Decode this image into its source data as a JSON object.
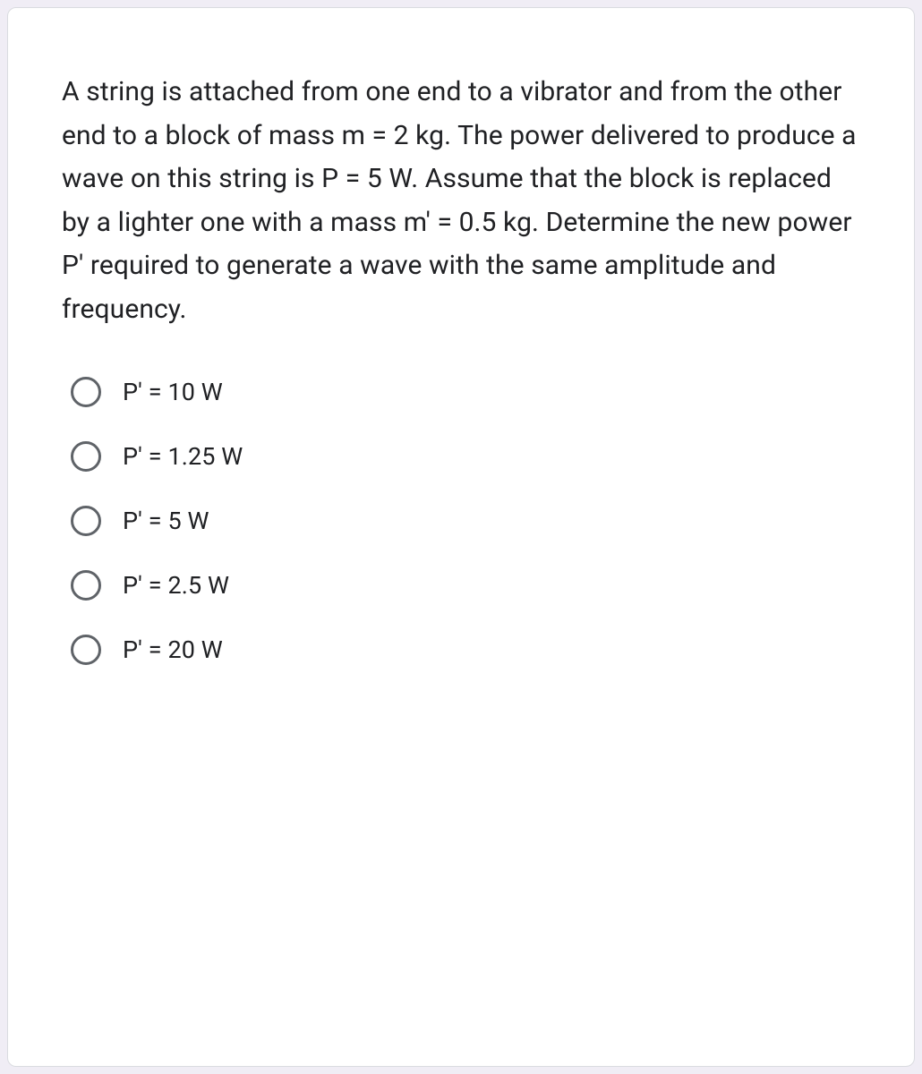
{
  "card": {
    "background_color": "#ffffff",
    "border_color": "#dadce0",
    "border_radius": 10
  },
  "question": {
    "text": "A string is attached from one end to a vibrator and from the other end to a block of mass m = 2 kg. The power delivered to produce a wave on this string is P = 5 W. Assume that the block is replaced by a lighter one with a mass m' = 0.5 kg. Determine the new power P' required to generate a wave with the same amplitude and frequency.",
    "font_size": 30,
    "text_color": "#202124"
  },
  "options": [
    {
      "label": "P' = 10 W",
      "selected": false
    },
    {
      "label": "P' = 1.25 W",
      "selected": false
    },
    {
      "label": "P' = 5 W",
      "selected": false
    },
    {
      "label": "P' = 2.5 W",
      "selected": false
    },
    {
      "label": "P' = 20 W",
      "selected": false
    }
  ],
  "radio_style": {
    "border_color": "#5f6368",
    "size": 34
  }
}
